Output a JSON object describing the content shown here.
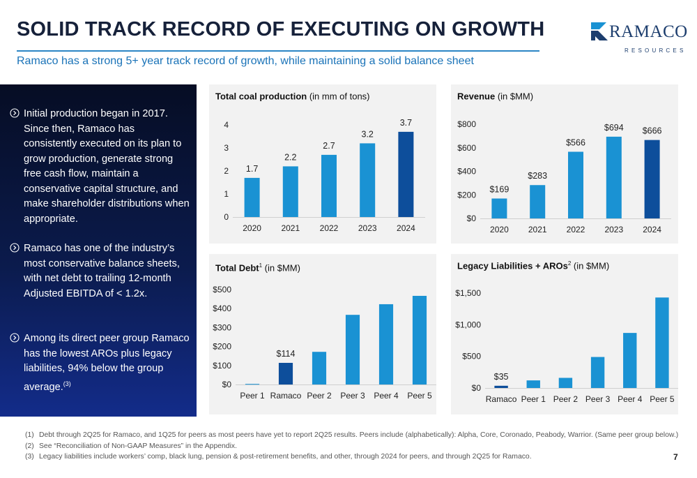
{
  "header": {
    "title": "SOLID TRACK RECORD OF EXECUTING ON GROWTH",
    "subtitle": "Ramaco has a strong 5+ year track record of growth, while maintaining a solid balance sheet"
  },
  "logo": {
    "word": "RAMACO",
    "sub": "RESOURCES"
  },
  "bullets": [
    {
      "text": "Initial production began in 2017. Since then, Ramaco has consistently executed on its plan to grow production, generate strong free cash flow, maintain a conservative capital structure, and make shareholder distributions when appropriate.",
      "sup": ""
    },
    {
      "text": "Ramaco has one of the industry’s most conservative balance sheets, with net debt to trailing 12-month Adjusted EBITDA of < 1.2x.",
      "sup": ""
    },
    {
      "text": "Among its direct peer group Ramaco has the lowest AROs plus legacy liabilities, 94% below the group average.",
      "sup": "(3)"
    }
  ],
  "colors": {
    "bar": "#1a92d3",
    "highlight": "#0d4e9b",
    "axis": "#cfcfcf",
    "tick": "#222222"
  },
  "chart_data": [
    {
      "id": "coal",
      "type": "bar",
      "title_bold": "Total coal production",
      "title_sup": "",
      "title_rest": " (in mm of tons)",
      "categories": [
        "2020",
        "2021",
        "2022",
        "2023",
        "2024"
      ],
      "values": [
        1.7,
        2.2,
        2.7,
        3.2,
        3.7
      ],
      "data_labels": [
        "1.7",
        "2.2",
        "2.7",
        "3.2",
        "3.7"
      ],
      "highlight_index": 4,
      "ylim": [
        0,
        4
      ],
      "yticks": [
        0,
        1,
        2,
        3,
        4
      ],
      "ytick_labels": [
        "0",
        "1",
        "2",
        "3",
        "4"
      ],
      "grid": false
    },
    {
      "id": "revenue",
      "type": "bar",
      "title_bold": "Revenue",
      "title_sup": "",
      "title_rest": " (in $MM)",
      "categories": [
        "2020",
        "2021",
        "2022",
        "2023",
        "2024"
      ],
      "values": [
        169,
        283,
        566,
        694,
        666
      ],
      "data_labels": [
        "$169",
        "$283",
        "$566",
        "$694",
        "$666"
      ],
      "highlight_index": 4,
      "ylim": [
        0,
        800
      ],
      "yticks": [
        0,
        200,
        400,
        600,
        800
      ],
      "ytick_labels": [
        "$0",
        "$200",
        "$400",
        "$600",
        "$800"
      ],
      "grid": false
    },
    {
      "id": "debt",
      "type": "bar",
      "title_bold": "Total Debt",
      "title_sup": "1",
      "title_rest": " (in $MM)",
      "categories": [
        "Peer 1",
        "Ramaco",
        "Peer 2",
        "Peer 3",
        "Peer 4",
        "Peer 5"
      ],
      "values": [
        3,
        114,
        172,
        367,
        423,
        467
      ],
      "data_labels": [
        "",
        "$114",
        "",
        "",
        "",
        ""
      ],
      "highlight_index": 1,
      "ylim": [
        0,
        500
      ],
      "yticks": [
        0,
        100,
        200,
        300,
        400,
        500
      ],
      "ytick_labels": [
        "$0",
        "$100",
        "$200",
        "$300",
        "$400",
        "$500"
      ],
      "grid": false
    },
    {
      "id": "legacy",
      "type": "bar",
      "title_bold": "Legacy Liabilities + AROs",
      "title_sup": "2",
      "title_rest": " (in $MM)",
      "categories": [
        "Ramaco",
        "Peer 1",
        "Peer 2",
        "Peer 3",
        "Peer 4",
        "Peer 5"
      ],
      "values": [
        35,
        120,
        160,
        490,
        870,
        1430
      ],
      "data_labels": [
        "$35",
        "",
        "",
        "",
        "",
        ""
      ],
      "highlight_index": 0,
      "ylim": [
        0,
        1500
      ],
      "yticks": [
        0,
        500,
        1000,
        1500
      ],
      "ytick_labels": [
        "$0",
        "$500",
        "$1,000",
        "$1,500"
      ],
      "grid": false
    }
  ],
  "footnotes": [
    {
      "num": "(1)",
      "text": "Debt through 2Q25 for Ramaco, and 1Q25 for peers as most peers have yet to report 2Q25 results. Peers include (alphabetically): Alpha, Core, Coronado, Peabody, Warrior. (Same peer group below.)"
    },
    {
      "num": "(2)",
      "text": "See “Reconciliation of Non-GAAP Measures” in the Appendix."
    },
    {
      "num": "(3)",
      "text": "Legacy liabilities include workers’ comp, black lung, pension & post-retirement benefits, and other, through 2024 for peers, and through 2Q25 for Ramaco."
    }
  ],
  "page_number": "7"
}
